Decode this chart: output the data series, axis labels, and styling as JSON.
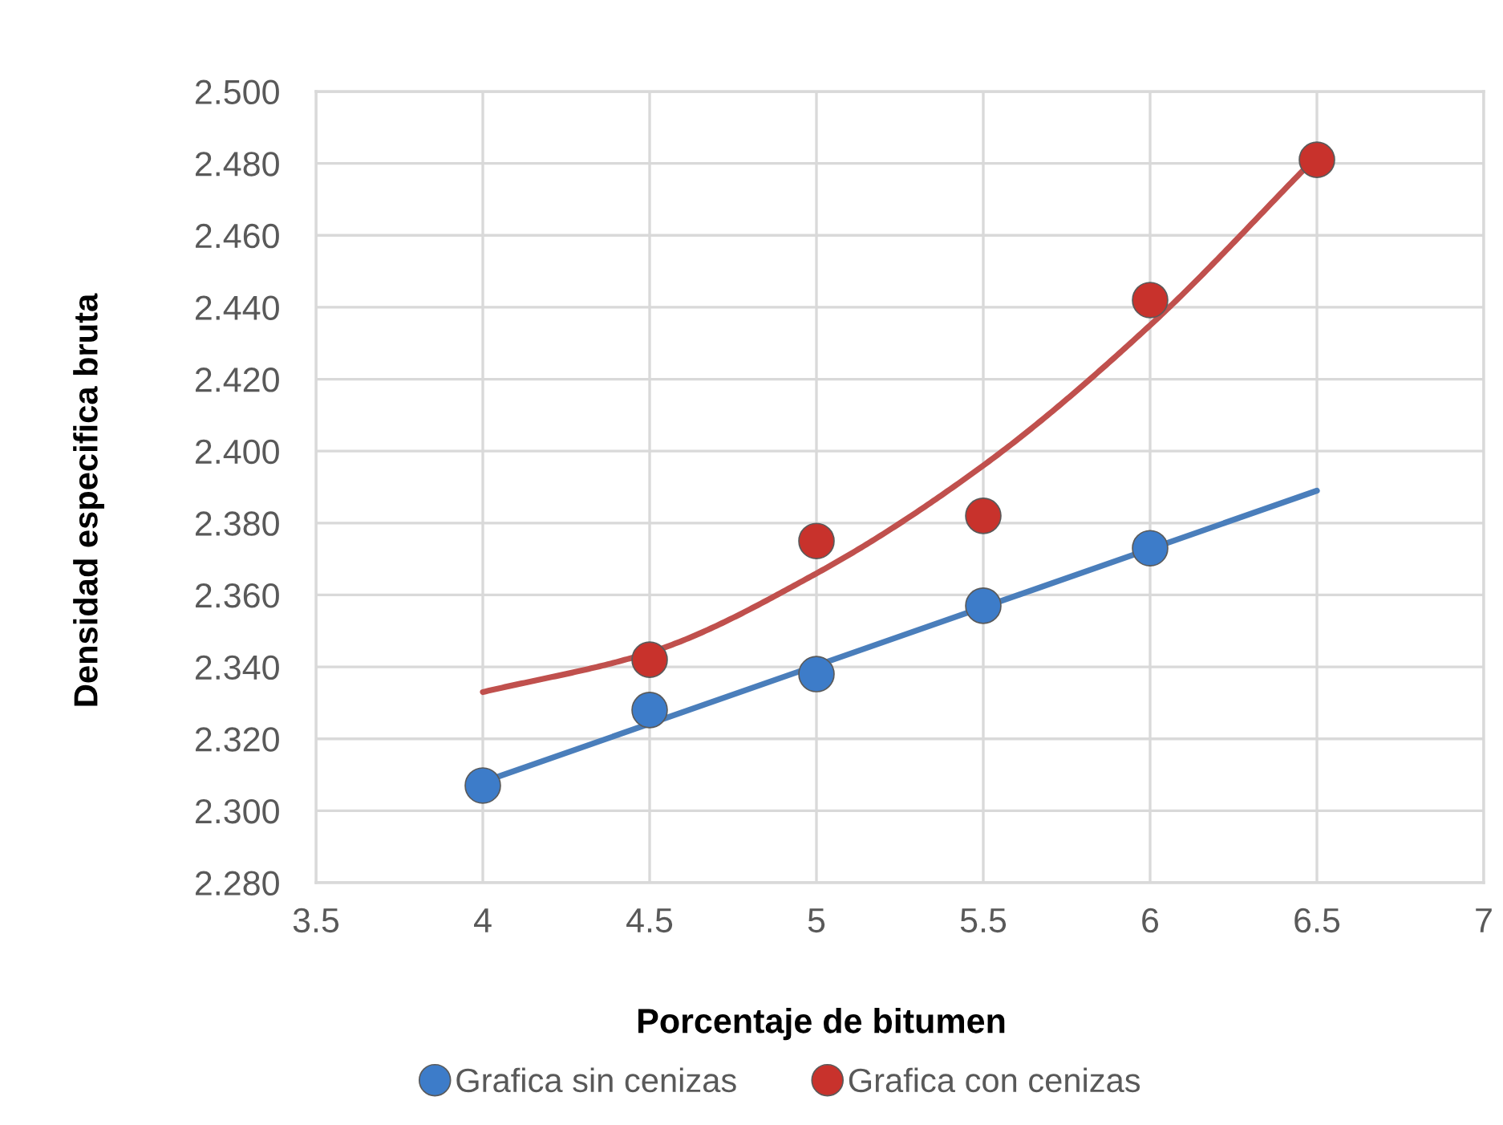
{
  "chart_data": {
    "type": "scatter",
    "xlabel": "Porcentaje de bitumen",
    "ylabel": "Densidad especifica bruta",
    "xlim": [
      3.5,
      7
    ],
    "xticks": [
      3.5,
      4,
      4.5,
      5,
      5.5,
      6,
      6.5,
      7
    ],
    "ylim": [
      2.28,
      2.5
    ],
    "yticks": [
      {
        "value": 2.28,
        "label": "2.280"
      },
      {
        "value": 2.3,
        "label": "2.300"
      },
      {
        "value": 2.32,
        "label": "2.320"
      },
      {
        "value": 2.34,
        "label": "2.340"
      },
      {
        "value": 2.36,
        "label": "2.360"
      },
      {
        "value": 2.38,
        "label": "2.380"
      },
      {
        "value": 2.4,
        "label": "2.400"
      },
      {
        "value": 2.42,
        "label": "2.420"
      },
      {
        "value": 2.44,
        "label": "2.440"
      },
      {
        "value": 2.46,
        "label": "2.460"
      },
      {
        "value": 2.48,
        "label": "2.480"
      },
      {
        "value": 2.5,
        "label": "2.500"
      }
    ],
    "grid": true,
    "legend": "bottom",
    "series": [
      {
        "type": "line",
        "color": "#4a7ebb",
        "line_style": "solid",
        "marker": "none",
        "x": [
          4,
          6.5
        ],
        "values": [
          2.308,
          2.389
        ]
      },
      {
        "type": "line",
        "color": "#c0504d",
        "line_style": "solid",
        "marker": "none",
        "x": [
          4,
          4.5,
          5,
          5.5,
          6,
          6.5
        ],
        "values": [
          2.333,
          2.344,
          2.366,
          2.396,
          2.435,
          2.482
        ]
      },
      {
        "name": "Grafica sin cenizas",
        "color": "#3d7cc9",
        "marker": "circle",
        "x": [
          4,
          4.5,
          5,
          5.5,
          6
        ],
        "values": [
          2.307,
          2.328,
          2.338,
          2.357,
          2.373
        ]
      },
      {
        "name": "Grafica con cenizas",
        "color": "#c8322c",
        "marker": "circle",
        "x": [
          4.5,
          5,
          5.5,
          6,
          6.5
        ],
        "values": [
          2.342,
          2.375,
          2.382,
          2.442,
          2.481
        ]
      }
    ]
  }
}
